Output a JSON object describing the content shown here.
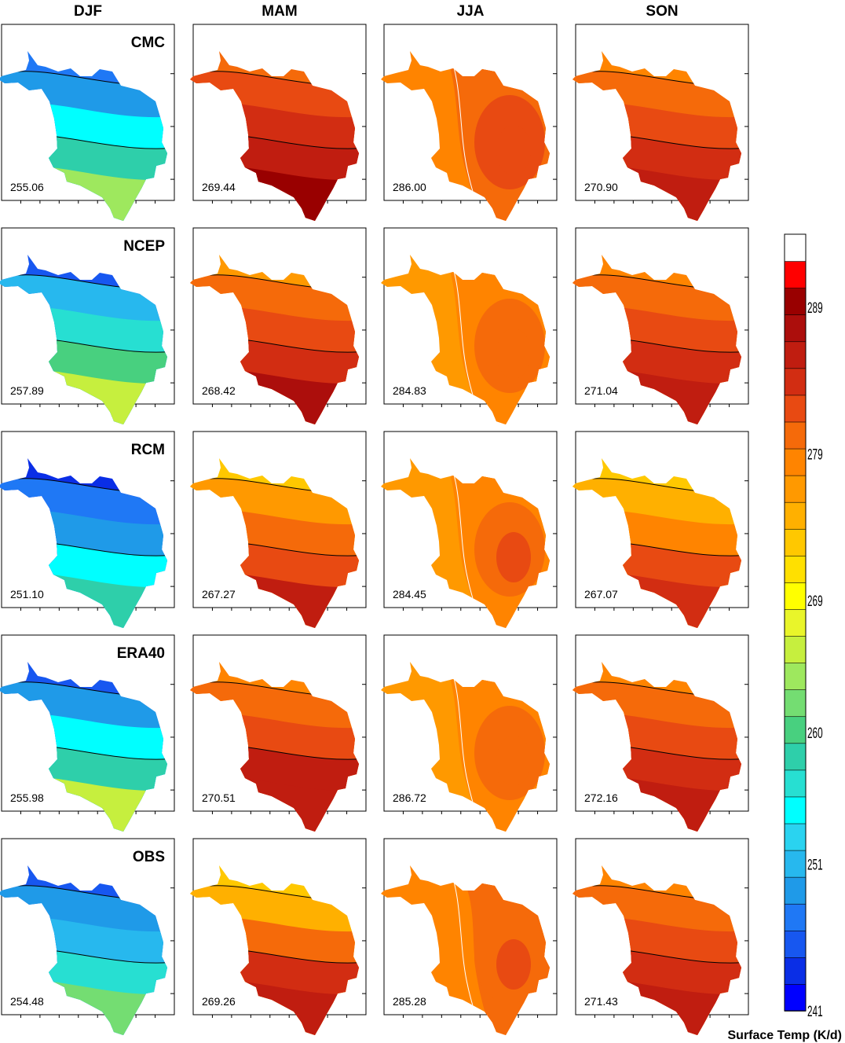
{
  "chart_data": {
    "type": "heatmap",
    "seasons": [
      "DJF",
      "MAM",
      "JJA",
      "SON"
    ],
    "datasets": [
      "CMC",
      "NCEP",
      "RCM",
      "ERA40",
      "OBS"
    ],
    "mean_values": [
      [
        "255.06",
        "269.44",
        "286.00",
        "270.90"
      ],
      [
        "257.89",
        "268.42",
        "284.83",
        "271.04"
      ],
      [
        "251.10",
        "267.27",
        "284.45",
        "267.07"
      ],
      [
        "255.98",
        "270.51",
        "286.72",
        "272.16"
      ],
      [
        "254.48",
        "269.26",
        "285.28",
        "271.43"
      ]
    ],
    "colorbar": {
      "label": "Surface Temp (K/d)",
      "tick_labels": [
        "241",
        "251",
        "260",
        "269",
        "279",
        "289"
      ],
      "tick_values": [
        241,
        251,
        260,
        269,
        279,
        289
      ],
      "range": [
        241,
        294
      ],
      "colors": [
        "#0000ff",
        "#0a2ee6",
        "#1757f0",
        "#1f78f5",
        "#1f9ae8",
        "#27b8ee",
        "#2ad3f0",
        "#00ffff",
        "#27dfd2",
        "#2ecfaa",
        "#48d07f",
        "#74dd72",
        "#9ee85e",
        "#c6ef3e",
        "#e9f52a",
        "#ffff00",
        "#ffe000",
        "#ffc800",
        "#ffb000",
        "#ff9900",
        "#ff8400",
        "#f56a0a",
        "#e84a12",
        "#d22d12",
        "#c01d10",
        "#ac0e0c",
        "#990000",
        "#ff0000",
        "#ffffff"
      ]
    },
    "field_levels": [
      [
        [
          0.1,
          0.16,
          0.25,
          0.33,
          0.43
        ],
        [
          0.75,
          0.78,
          0.83,
          0.87,
          0.92
        ],
        [
          0.71,
          0.74,
          0.76,
          0.79,
          0.8
        ],
        [
          0.71,
          0.76,
          0.8,
          0.83,
          0.86
        ]
      ],
      [
        [
          0.08,
          0.17,
          0.27,
          0.34,
          0.45
        ],
        [
          0.69,
          0.74,
          0.79,
          0.83,
          0.88
        ],
        [
          0.67,
          0.7,
          0.72,
          0.74,
          0.76
        ],
        [
          0.71,
          0.76,
          0.8,
          0.83,
          0.85
        ]
      ],
      [
        [
          0.03,
          0.09,
          0.16,
          0.25,
          0.33
        ],
        [
          0.62,
          0.68,
          0.75,
          0.8,
          0.85
        ],
        [
          0.68,
          0.7,
          0.73,
          0.75,
          0.77
        ],
        [
          0.6,
          0.66,
          0.72,
          0.77,
          0.82
        ]
      ],
      [
        [
          0.08,
          0.15,
          0.24,
          0.32,
          0.45
        ],
        [
          0.7,
          0.76,
          0.8,
          0.84,
          0.87
        ],
        [
          0.69,
          0.71,
          0.72,
          0.74,
          0.76
        ],
        [
          0.71,
          0.76,
          0.8,
          0.83,
          0.86
        ]
      ],
      [
        [
          0.06,
          0.13,
          0.19,
          0.29,
          0.4
        ],
        [
          0.59,
          0.66,
          0.74,
          0.81,
          0.86
        ],
        [
          0.7,
          0.72,
          0.74,
          0.76,
          0.8
        ],
        [
          0.71,
          0.76,
          0.8,
          0.83,
          0.86
        ]
      ]
    ]
  }
}
